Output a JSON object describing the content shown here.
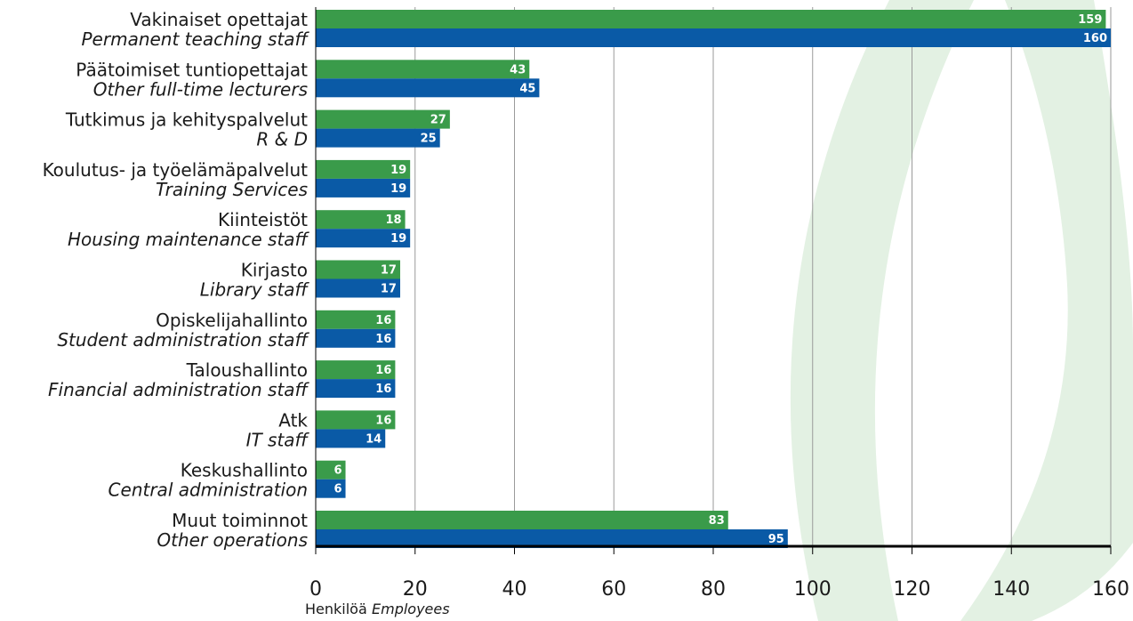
{
  "chart_data": {
    "type": "bar",
    "orientation": "horizontal",
    "categories": [
      {
        "fi": "Vakinaiset opettajat",
        "en": "Permanent teaching staff"
      },
      {
        "fi": "Päätoimiset tuntiopettajat",
        "en": "Other full-time lecturers"
      },
      {
        "fi": "Tutkimus ja kehityspalvelut",
        "en": "R & D"
      },
      {
        "fi": "Koulutus- ja työelämäpalvelut",
        "en": "Training Services"
      },
      {
        "fi": "Kiinteistöt",
        "en": "Housing maintenance staff"
      },
      {
        "fi": "Kirjasto",
        "en": "Library staff"
      },
      {
        "fi": "Opiskelijahallinto",
        "en": "Student administration staff"
      },
      {
        "fi": "Taloushallinto",
        "en": "Financial administration staff"
      },
      {
        "fi": "Atk",
        "en": "IT staff"
      },
      {
        "fi": "Keskushallinto",
        "en": "Central administration"
      },
      {
        "fi": "Muut toiminnot",
        "en": "Other operations"
      }
    ],
    "series": [
      {
        "color": "#3a9b4a",
        "values": [
          159,
          43,
          27,
          19,
          18,
          17,
          16,
          16,
          16,
          6,
          83
        ]
      },
      {
        "color": "#0a5aa6",
        "values": [
          160,
          45,
          25,
          19,
          19,
          17,
          16,
          16,
          14,
          6,
          95
        ]
      }
    ],
    "xlim": [
      0,
      160
    ],
    "xticks": [
      "0",
      "20",
      "40",
      "60",
      "80",
      "100",
      "120",
      "140",
      "160"
    ],
    "xlabel": {
      "fi": "Henkilöä",
      "en": "Employees"
    },
    "grid": true,
    "legend": "none",
    "background_accent_color": "#e3f1e3"
  }
}
